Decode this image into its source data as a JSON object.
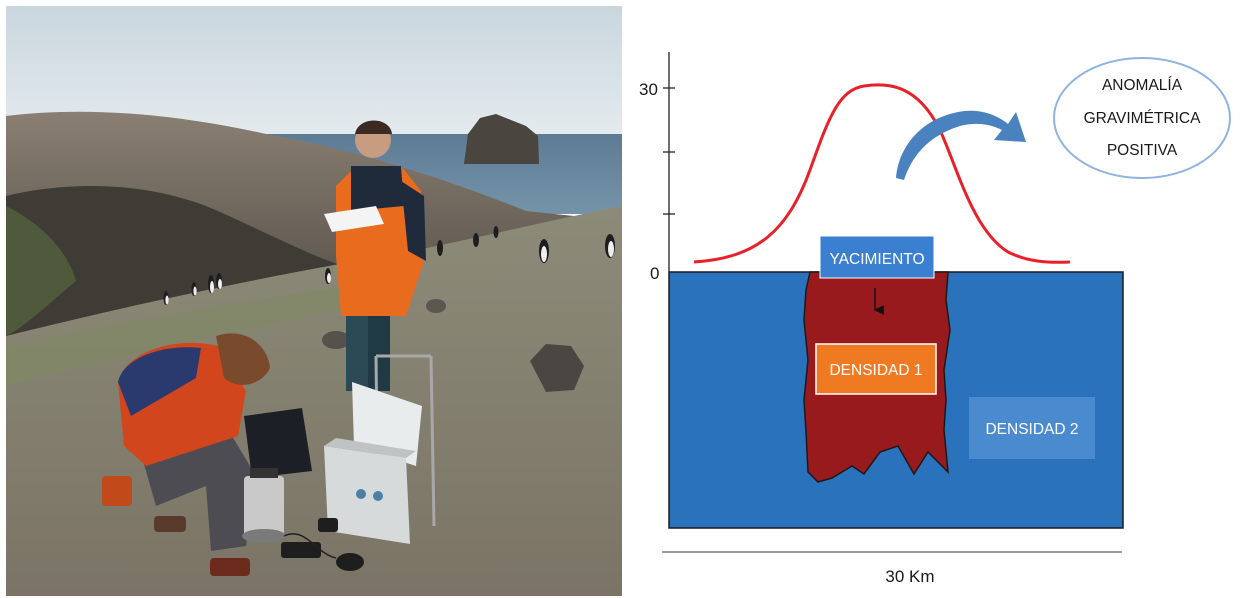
{
  "diagram": {
    "y_axis_ticks": [
      "30",
      "0"
    ],
    "x_scale_label": "30 Km",
    "anomaly_label": [
      "ANOMALÍA",
      "GRAVIMÉTRICA",
      "POSITIVA"
    ],
    "deposit_label": "YACIMIENTO",
    "density_1_label": "DENSIDAD 1",
    "density_2_label": "DENSIDAD 2",
    "colors": {
      "ground": "#2b72bd",
      "ore_body": "#981a1c",
      "anomaly_curve": "#e8202a",
      "deposit_box": "#3a7fd0",
      "density_1_box": "#f07a22",
      "density_2_box": "#4a8bd0",
      "curved_arrow": "#4a82c0",
      "ellipse_stroke": "#8fb4e0"
    }
  },
  "photo": {
    "scene": "field-gravimetry-survey",
    "icons": [
      "penguin-icon",
      "gravimeter-icon",
      "equipment-case-icon",
      "rock-islet-icon"
    ]
  }
}
